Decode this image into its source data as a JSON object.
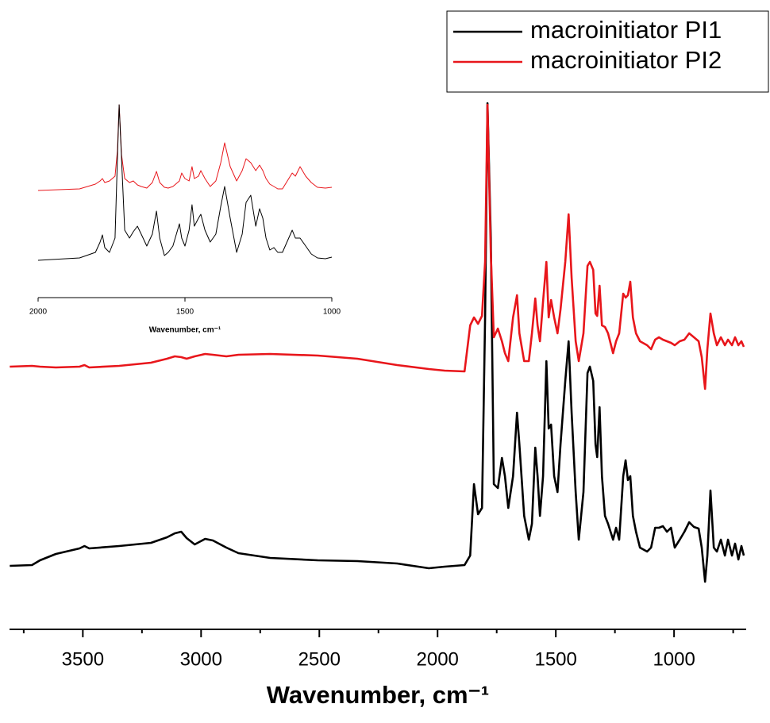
{
  "chart_data": [
    {
      "type": "line",
      "xlabel": "Wavenumber, cm⁻¹",
      "xlim": [
        3810,
        695
      ],
      "xticks": [
        3500,
        3000,
        2500,
        2000,
        1500,
        1000
      ],
      "xminor": [
        3750,
        3250,
        2750,
        2250,
        1750,
        1250,
        750
      ],
      "ylim": [
        0,
        680
      ],
      "legend": "upper right",
      "x": [
        3809,
        3715,
        3681,
        3614,
        3514,
        3493,
        3473,
        3346,
        3212,
        3144,
        3111,
        3084,
        3061,
        3027,
        2983,
        2950,
        2893,
        2842,
        2708,
        2507,
        2339,
        2171,
        2037,
        1970,
        1886,
        1862,
        1846,
        1829,
        1812,
        1799,
        1789,
        1775,
        1762,
        1745,
        1728,
        1715,
        1701,
        1681,
        1664,
        1654,
        1634,
        1614,
        1601,
        1587,
        1577,
        1567,
        1554,
        1540,
        1530,
        1520,
        1507,
        1493,
        1480,
        1460,
        1446,
        1433,
        1416,
        1403,
        1383,
        1366,
        1356,
        1342,
        1332,
        1325,
        1315,
        1305,
        1292,
        1279,
        1258,
        1245,
        1232,
        1215,
        1205,
        1195,
        1185,
        1174,
        1161,
        1144,
        1114,
        1097,
        1080,
        1064,
        1047,
        1030,
        1013,
        997,
        976,
        956,
        936,
        916,
        896,
        883,
        869,
        859,
        846,
        832,
        819,
        802,
        785,
        772,
        755,
        742,
        728,
        715,
        705
      ],
      "series": [
        {
          "name": "macroinitiator PI1",
          "color": "#000000",
          "values": [
            80,
            81,
            87,
            95,
            102,
            105,
            102,
            105,
            109,
            116,
            121,
            123,
            115,
            107,
            114,
            112,
            103,
            96,
            90,
            87,
            86,
            83,
            77,
            79,
            81,
            93,
            183,
            145,
            153,
            393,
            663,
            493,
            183,
            178,
            216,
            193,
            153,
            193,
            273,
            233,
            143,
            113,
            133,
            229,
            193,
            143,
            193,
            338,
            253,
            258,
            193,
            173,
            233,
            313,
            363,
            273,
            173,
            113,
            173,
            323,
            331,
            313,
            233,
            217,
            280,
            193,
            143,
            133,
            113,
            128,
            113,
            193,
            213,
            188,
            193,
            143,
            123,
            103,
            98,
            103,
            128,
            128,
            130,
            123,
            128,
            103,
            113,
            123,
            135,
            129,
            127,
            103,
            60,
            93,
            175,
            103,
            98,
            113,
            93,
            113,
            93,
            108,
            88,
            105,
            93
          ]
        },
        {
          "name": "macroinitiator PI2",
          "color": "#e8161b",
          "values": [
            331,
            332,
            331,
            330,
            331,
            333,
            330,
            332,
            336,
            341,
            344,
            343,
            341,
            344,
            347,
            346,
            344,
            346,
            347,
            345,
            341,
            333,
            328,
            326,
            325,
            383,
            393,
            385,
            395,
            463,
            661,
            473,
            368,
            379,
            363,
            348,
            338,
            393,
            421,
            373,
            338,
            338,
            373,
            417,
            383,
            363,
            413,
            463,
            393,
            415,
            393,
            373,
            403,
            463,
            523,
            443,
            363,
            338,
            373,
            458,
            463,
            453,
            398,
            395,
            433,
            383,
            381,
            373,
            348,
            363,
            373,
            423,
            418,
            421,
            438,
            393,
            373,
            363,
            358,
            353,
            365,
            368,
            365,
            363,
            361,
            358,
            363,
            365,
            373,
            368,
            363,
            343,
            303,
            353,
            398,
            373,
            358,
            368,
            358,
            365,
            358,
            368,
            358,
            363,
            356
          ]
        }
      ]
    },
    {
      "type": "line",
      "xlabel": "Wavenumber, cm⁻¹",
      "xlim": [
        2000,
        1000
      ],
      "xticks": [
        2000,
        1500,
        1000
      ],
      "ylim": [
        0,
        255
      ],
      "x": [
        2000,
        1859,
        1805,
        1789,
        1781,
        1773,
        1757,
        1738,
        1730,
        1724,
        1716,
        1705,
        1689,
        1676,
        1662,
        1649,
        1630,
        1611,
        1597,
        1586,
        1570,
        1557,
        1541,
        1519,
        1511,
        1500,
        1486,
        1476,
        1468,
        1454,
        1446,
        1432,
        1414,
        1395,
        1378,
        1365,
        1346,
        1324,
        1305,
        1292,
        1276,
        1259,
        1246,
        1235,
        1224,
        1211,
        1197,
        1184,
        1168,
        1135,
        1124,
        1108,
        1089,
        1070,
        1049,
        1022,
        1000
      ],
      "series": [
        {
          "color": "#e8161b",
          "values": [
            135,
            137,
            143,
            147,
            150,
            145,
            147,
            153,
            185,
            243,
            180,
            150,
            145,
            147,
            142,
            140,
            138,
            145,
            159,
            145,
            139,
            138,
            140,
            147,
            157,
            150,
            147,
            165,
            150,
            153,
            160,
            150,
            140,
            147,
            170,
            195,
            165,
            147,
            160,
            175,
            170,
            160,
            167,
            160,
            150,
            143,
            140,
            137,
            137,
            157,
            153,
            165,
            153,
            145,
            139,
            138,
            139
          ]
        },
        {
          "color": "#000000",
          "values": [
            47,
            50,
            57,
            70,
            79,
            63,
            57,
            75,
            175,
            243,
            175,
            85,
            75,
            83,
            90,
            80,
            65,
            80,
            109,
            75,
            53,
            57,
            65,
            93,
            75,
            65,
            85,
            117,
            90,
            100,
            105,
            85,
            70,
            80,
            115,
            140,
            100,
            57,
            80,
            120,
            129,
            90,
            112,
            100,
            75,
            60,
            63,
            57,
            57,
            85,
            75,
            75,
            65,
            55,
            50,
            49,
            51
          ]
        }
      ]
    }
  ]
}
